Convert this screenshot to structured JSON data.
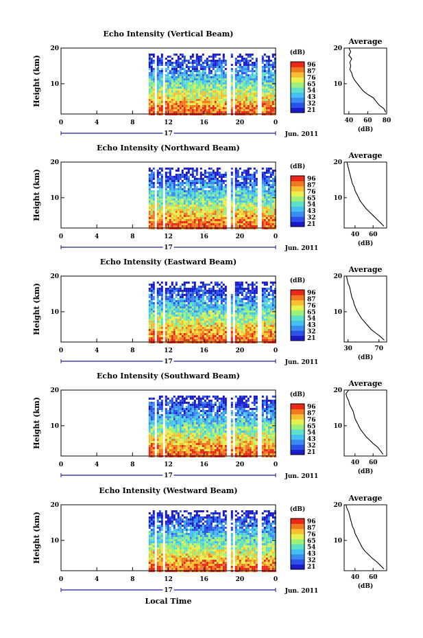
{
  "figure": {
    "xaxis_label": "Local Time",
    "date_label": "Jun. 2011",
    "day_label": "17",
    "colorbar_unit": "(dB)",
    "colorbar_ticks": [
      "96",
      "87",
      "76",
      "65",
      "54",
      "43",
      "32",
      "21"
    ],
    "profile_title": "Average",
    "profile_xlabel": "(dB)",
    "height_label": "Height (km)"
  },
  "colors": {
    "scale": [
      "#1a1ac8",
      "#2b52e8",
      "#3a8cf0",
      "#45c0f0",
      "#5ee0c8",
      "#9ef07a",
      "#e8f050",
      "#f8c030",
      "#f07820",
      "#e82818"
    ]
  },
  "chart_data": [
    {
      "type": "heatmap",
      "title": "Echo Intensity (Vertical Beam)",
      "xlabel": "",
      "ylabel": "Height (km)",
      "x_ticks": [
        "0",
        "4",
        "8",
        "12",
        "16",
        "20",
        "0"
      ],
      "y_ticks": [
        "20",
        "10"
      ],
      "xlim": [
        0,
        24
      ],
      "ylim": [
        1.5,
        20
      ],
      "zlim": [
        21,
        96
      ],
      "data_start_hour": 9.8,
      "profile": {
        "x_ticks": [
          "40",
          "60",
          "80"
        ],
        "xlim": [
          35,
          80
        ],
        "heights": [
          2,
          3,
          4,
          5,
          6,
          7,
          8,
          9,
          10,
          11,
          12,
          13,
          14,
          15,
          16,
          17,
          18,
          19,
          20
        ],
        "values": [
          79,
          77,
          72,
          69,
          66,
          60,
          55,
          52,
          49,
          46,
          44,
          43,
          41,
          42,
          41,
          43,
          40,
          42,
          40
        ]
      }
    },
    {
      "type": "heatmap",
      "title": "Echo Intensity (Northward Beam)",
      "xlabel": "",
      "ylabel": "Height (km)",
      "x_ticks": [
        "0",
        "4",
        "8",
        "12",
        "16",
        "20",
        "0"
      ],
      "y_ticks": [
        "20",
        "10"
      ],
      "xlim": [
        0,
        24
      ],
      "ylim": [
        1.5,
        20
      ],
      "zlim": [
        21,
        96
      ],
      "data_start_hour": 9.8,
      "profile": {
        "x_ticks": [
          "40",
          "60"
        ],
        "xlim": [
          28,
          75
        ],
        "heights": [
          2,
          3,
          4,
          5,
          6,
          7,
          8,
          9,
          10,
          11,
          12,
          13,
          14,
          15,
          16,
          17,
          18,
          19,
          20
        ],
        "values": [
          72,
          68,
          64,
          60,
          56,
          52,
          49,
          46,
          44,
          42,
          40,
          39,
          37,
          36,
          35,
          34,
          33,
          32,
          31
        ]
      }
    },
    {
      "type": "heatmap",
      "title": "Echo Intensity (Eastward Beam)",
      "xlabel": "",
      "ylabel": "Height (km)",
      "x_ticks": [
        "0",
        "4",
        "8",
        "12",
        "16",
        "20",
        "0"
      ],
      "y_ticks": [
        "20",
        "10"
      ],
      "xlim": [
        0,
        24
      ],
      "ylim": [
        1.5,
        20
      ],
      "zlim": [
        21,
        96
      ],
      "data_start_hour": 9.8,
      "profile": {
        "x_ticks": [
          "30",
          "70"
        ],
        "xlim": [
          25,
          80
        ],
        "heights": [
          2,
          3,
          4,
          5,
          6,
          7,
          8,
          9,
          10,
          11,
          12,
          13,
          14,
          15,
          16,
          17,
          18,
          19,
          20
        ],
        "values": [
          77,
          72,
          66,
          60,
          56,
          52,
          48,
          45,
          42,
          40,
          38,
          37,
          35,
          34,
          33,
          32,
          30,
          29,
          28
        ]
      }
    },
    {
      "type": "heatmap",
      "title": "Echo Intensity (Southward Beam)",
      "xlabel": "",
      "ylabel": "Height (km)",
      "x_ticks": [
        "0",
        "4",
        "8",
        "12",
        "16",
        "20",
        "0"
      ],
      "y_ticks": [
        "20",
        "10"
      ],
      "xlim": [
        0,
        24
      ],
      "ylim": [
        1.5,
        20
      ],
      "zlim": [
        21,
        96
      ],
      "data_start_hour": 9.8,
      "profile": {
        "x_ticks": [
          "40",
          "60"
        ],
        "xlim": [
          28,
          75
        ],
        "heights": [
          2,
          3,
          4,
          5,
          6,
          7,
          8,
          9,
          10,
          11,
          12,
          13,
          14,
          15,
          16,
          17,
          18,
          19,
          20
        ],
        "values": [
          71,
          68,
          65,
          60,
          56,
          52,
          49,
          46,
          44,
          42,
          40,
          39,
          38,
          36,
          34,
          33,
          31,
          30,
          33
        ]
      }
    },
    {
      "type": "heatmap",
      "title": "Echo Intensity (Westward Beam)",
      "xlabel": "Local Time",
      "ylabel": "Height (km)",
      "x_ticks": [
        "0",
        "4",
        "8",
        "12",
        "16",
        "20",
        "0"
      ],
      "y_ticks": [
        "20",
        "10"
      ],
      "xlim": [
        0,
        24
      ],
      "ylim": [
        1.5,
        20
      ],
      "zlim": [
        21,
        96
      ],
      "data_start_hour": 9.8,
      "profile": {
        "x_ticks": [
          "40",
          "60"
        ],
        "xlim": [
          28,
          75
        ],
        "heights": [
          2,
          3,
          4,
          5,
          6,
          7,
          8,
          9,
          10,
          11,
          12,
          13,
          14,
          15,
          16,
          17,
          18,
          19,
          20
        ],
        "values": [
          72,
          68,
          64,
          59,
          55,
          51,
          48,
          46,
          44,
          42,
          40,
          39,
          37,
          36,
          35,
          34,
          33,
          31,
          30
        ]
      }
    }
  ]
}
